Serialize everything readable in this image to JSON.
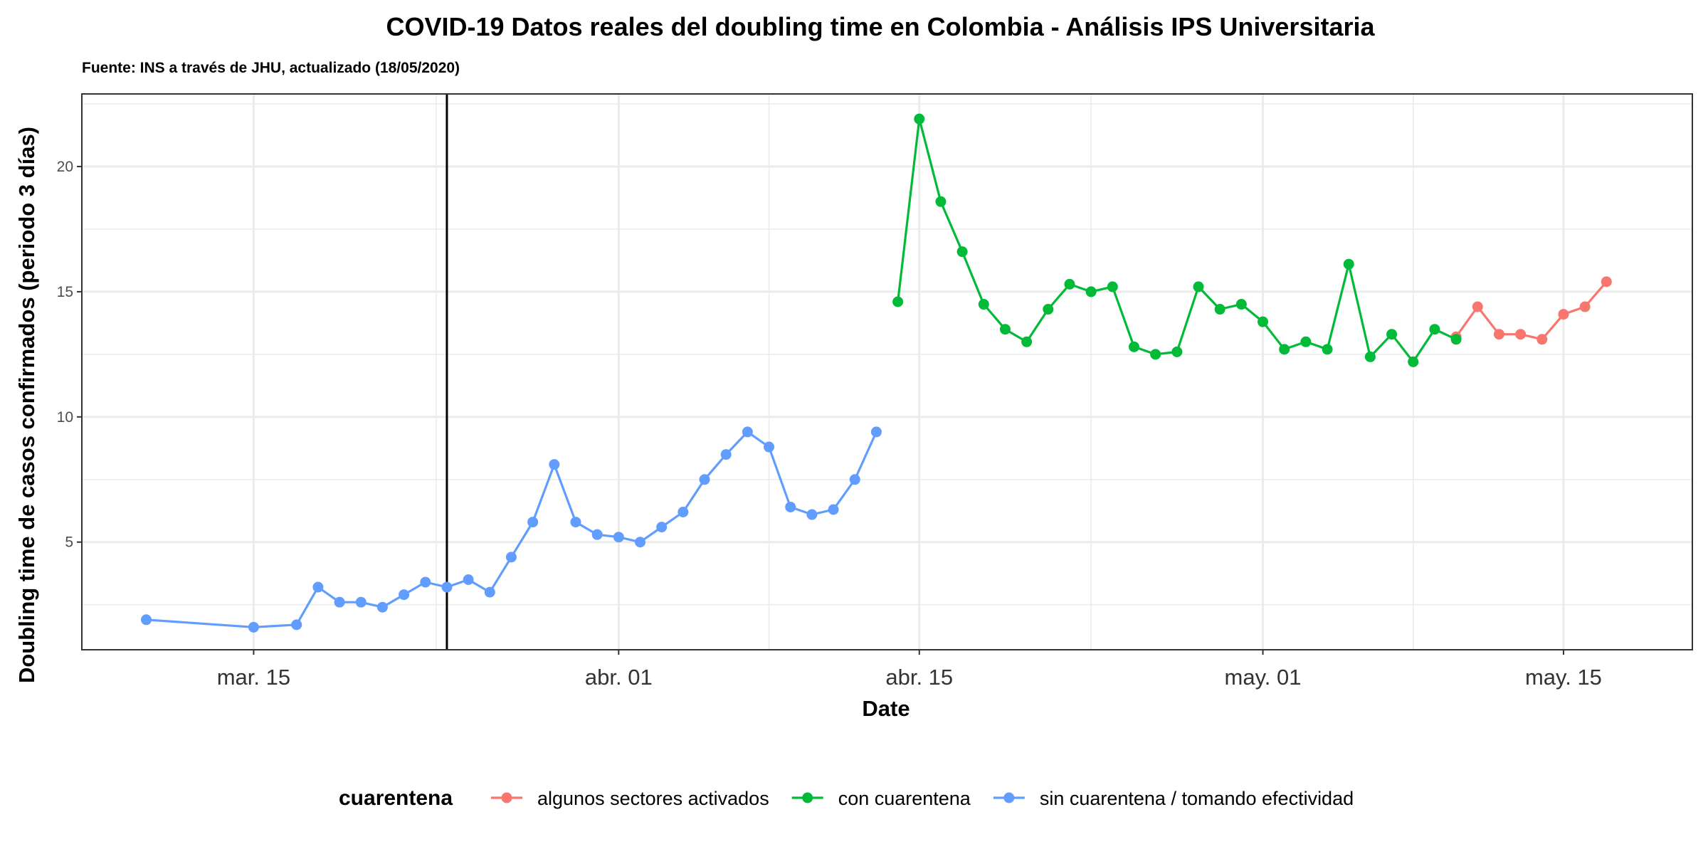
{
  "chart_data": {
    "type": "line",
    "title": "COVID-19 Datos reales del doubling time en Colombia - Análisis IPS Universitaria",
    "subtitle": "Fuente: INS a través de JHU, actualizado (18/05/2020)",
    "xlabel": "Date",
    "ylabel": "Doubling time de casos confirmados (periodo 3 días)",
    "x_ticks": [
      {
        "date": "2020-03-15",
        "label": "mar. 15"
      },
      {
        "date": "2020-04-01",
        "label": "abr. 01"
      },
      {
        "date": "2020-04-15",
        "label": "abr. 15"
      },
      {
        "date": "2020-05-01",
        "label": "may. 01"
      },
      {
        "date": "2020-05-15",
        "label": "may. 15"
      }
    ],
    "y_ticks": [
      5,
      10,
      15,
      20
    ],
    "xlim": [
      "2020-03-07",
      "2020-05-21"
    ],
    "ylim": [
      0.7,
      22.9
    ],
    "grid": true,
    "vline": {
      "date": "2020-03-24"
    },
    "legend": {
      "title": "cuarentena",
      "position": "bottom"
    },
    "series": [
      {
        "name": "algunos sectores activados",
        "color": "#F8766D",
        "points": [
          {
            "x": "2020-05-10",
            "y": 13.2
          },
          {
            "x": "2020-05-11",
            "y": 14.4
          },
          {
            "x": "2020-05-12",
            "y": 13.3
          },
          {
            "x": "2020-05-13",
            "y": 13.3
          },
          {
            "x": "2020-05-14",
            "y": 13.1
          },
          {
            "x": "2020-05-15",
            "y": 14.1
          },
          {
            "x": "2020-05-16",
            "y": 14.4
          },
          {
            "x": "2020-05-17",
            "y": 15.4
          }
        ]
      },
      {
        "name": "con cuarentena",
        "color": "#00BA38",
        "points": [
          {
            "x": "2020-04-14",
            "y": 14.6
          },
          {
            "x": "2020-04-15",
            "y": 21.9
          },
          {
            "x": "2020-04-16",
            "y": 18.6
          },
          {
            "x": "2020-04-17",
            "y": 16.6
          },
          {
            "x": "2020-04-18",
            "y": 14.5
          },
          {
            "x": "2020-04-19",
            "y": 13.5
          },
          {
            "x": "2020-04-20",
            "y": 13.0
          },
          {
            "x": "2020-04-21",
            "y": 14.3
          },
          {
            "x": "2020-04-22",
            "y": 15.3
          },
          {
            "x": "2020-04-23",
            "y": 15.0
          },
          {
            "x": "2020-04-24",
            "y": 15.2
          },
          {
            "x": "2020-04-25",
            "y": 12.8
          },
          {
            "x": "2020-04-26",
            "y": 12.5
          },
          {
            "x": "2020-04-27",
            "y": 12.6
          },
          {
            "x": "2020-04-28",
            "y": 15.2
          },
          {
            "x": "2020-04-29",
            "y": 14.3
          },
          {
            "x": "2020-04-30",
            "y": 14.5
          },
          {
            "x": "2020-05-01",
            "y": 13.8
          },
          {
            "x": "2020-05-02",
            "y": 12.7
          },
          {
            "x": "2020-05-03",
            "y": 13.0
          },
          {
            "x": "2020-05-04",
            "y": 12.7
          },
          {
            "x": "2020-05-05",
            "y": 16.1
          },
          {
            "x": "2020-05-06",
            "y": 12.4
          },
          {
            "x": "2020-05-07",
            "y": 13.3
          },
          {
            "x": "2020-05-08",
            "y": 12.2
          },
          {
            "x": "2020-05-09",
            "y": 13.5
          },
          {
            "x": "2020-05-10",
            "y": 13.1
          }
        ]
      },
      {
        "name": "sin cuarentena / tomando efectividad",
        "color": "#619CFF",
        "points": [
          {
            "x": "2020-03-10",
            "y": 1.9
          },
          {
            "x": "2020-03-15",
            "y": 1.6
          },
          {
            "x": "2020-03-17",
            "y": 1.7
          },
          {
            "x": "2020-03-18",
            "y": 3.2
          },
          {
            "x": "2020-03-19",
            "y": 2.6
          },
          {
            "x": "2020-03-20",
            "y": 2.6
          },
          {
            "x": "2020-03-21",
            "y": 2.4
          },
          {
            "x": "2020-03-22",
            "y": 2.9
          },
          {
            "x": "2020-03-23",
            "y": 3.4
          },
          {
            "x": "2020-03-24",
            "y": 3.2
          },
          {
            "x": "2020-03-25",
            "y": 3.5
          },
          {
            "x": "2020-03-26",
            "y": 3.0
          },
          {
            "x": "2020-03-27",
            "y": 4.4
          },
          {
            "x": "2020-03-28",
            "y": 5.8
          },
          {
            "x": "2020-03-29",
            "y": 8.1
          },
          {
            "x": "2020-03-30",
            "y": 5.8
          },
          {
            "x": "2020-03-31",
            "y": 5.3
          },
          {
            "x": "2020-04-01",
            "y": 5.2
          },
          {
            "x": "2020-04-02",
            "y": 5.0
          },
          {
            "x": "2020-04-03",
            "y": 5.6
          },
          {
            "x": "2020-04-04",
            "y": 6.2
          },
          {
            "x": "2020-04-05",
            "y": 7.5
          },
          {
            "x": "2020-04-06",
            "y": 8.5
          },
          {
            "x": "2020-04-07",
            "y": 9.4
          },
          {
            "x": "2020-04-08",
            "y": 8.8
          },
          {
            "x": "2020-04-09",
            "y": 6.4
          },
          {
            "x": "2020-04-10",
            "y": 6.1
          },
          {
            "x": "2020-04-11",
            "y": 6.3
          },
          {
            "x": "2020-04-12",
            "y": 7.5
          },
          {
            "x": "2020-04-13",
            "y": 9.4
          }
        ]
      }
    ]
  }
}
